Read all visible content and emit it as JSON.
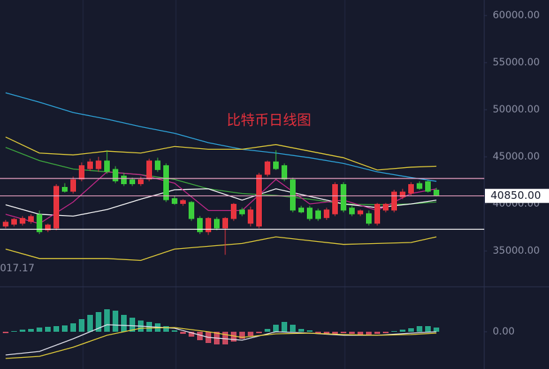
{
  "chart_data": [
    {
      "type": "candlestick",
      "title": "比特币日线图",
      "title_color": "#e0303c",
      "ylim": [
        31200,
        61650
      ],
      "yticks": [
        {
          "value": 35000,
          "label": "35000.00"
        },
        {
          "value": 40000,
          "label": "40000.00"
        },
        {
          "value": 45000,
          "label": "45000.00"
        },
        {
          "value": 50000,
          "label": "50000.00"
        },
        {
          "value": 55000,
          "label": "55000.00"
        },
        {
          "value": 60000,
          "label": "60000.00"
        }
      ],
      "up_color": "#e8353f",
      "down_color": "#3ccf3c",
      "ohlc": [
        [
          37600,
          38300,
          37400,
          38100
        ],
        [
          37800,
          38500,
          37600,
          38400
        ],
        [
          37900,
          38700,
          37700,
          38500
        ],
        [
          38100,
          38900,
          37900,
          38700
        ],
        [
          38900,
          39300,
          36800,
          37000
        ],
        [
          37200,
          37900,
          37000,
          37800
        ],
        [
          37400,
          42100,
          37200,
          41900
        ],
        [
          41800,
          42200,
          41200,
          41300
        ],
        [
          41300,
          42900,
          41100,
          42600
        ],
        [
          42600,
          44400,
          42400,
          44100
        ],
        [
          43700,
          44800,
          43500,
          44500
        ],
        [
          43700,
          45000,
          43400,
          44600
        ],
        [
          44600,
          45700,
          43200,
          43400
        ],
        [
          43700,
          44000,
          42200,
          42400
        ],
        [
          43000,
          43300,
          41900,
          42100
        ],
        [
          42600,
          42800,
          41900,
          42100
        ],
        [
          42100,
          42900,
          41900,
          42600
        ],
        [
          42600,
          44800,
          42400,
          44600
        ],
        [
          44600,
          44900,
          43400,
          43600
        ],
        [
          44100,
          44300,
          40200,
          40400
        ],
        [
          40600,
          40900,
          39900,
          40000
        ],
        [
          40000,
          40500,
          39800,
          40400
        ],
        [
          40200,
          40300,
          38200,
          38400
        ],
        [
          38500,
          38700,
          36800,
          37000
        ],
        [
          37000,
          38600,
          36700,
          38500
        ],
        [
          38400,
          38600,
          37200,
          37400
        ],
        [
          37400,
          38600,
          34600,
          38500
        ],
        [
          38400,
          40100,
          38200,
          40000
        ],
        [
          39400,
          39600,
          38700,
          38900
        ],
        [
          37900,
          39700,
          37600,
          39400
        ],
        [
          37600,
          43300,
          37400,
          43100
        ],
        [
          43100,
          44600,
          42900,
          44500
        ],
        [
          44500,
          45700,
          43600,
          43700
        ],
        [
          44100,
          44300,
          42400,
          42600
        ],
        [
          42600,
          42800,
          39100,
          39300
        ],
        [
          39600,
          39800,
          39000,
          39100
        ],
        [
          39600,
          39800,
          38200,
          38400
        ],
        [
          39300,
          39500,
          38200,
          38400
        ],
        [
          38500,
          39600,
          38300,
          39400
        ],
        [
          38900,
          42300,
          38700,
          42100
        ],
        [
          42100,
          42300,
          39100,
          39300
        ],
        [
          39600,
          39800,
          38700,
          38900
        ],
        [
          38900,
          39400,
          38700,
          39300
        ],
        [
          39000,
          39300,
          37700,
          37900
        ],
        [
          37900,
          40100,
          37700,
          40000
        ],
        [
          39300,
          40100,
          39100,
          40000
        ],
        [
          39300,
          41500,
          39100,
          41300
        ],
        [
          40700,
          41600,
          40500,
          41300
        ],
        [
          41100,
          42300,
          40900,
          42100
        ],
        [
          42200,
          42400,
          41500,
          41600
        ],
        [
          42400,
          42500,
          41200,
          41300
        ],
        [
          41500,
          41700,
          40800,
          40900
        ]
      ],
      "lines": [
        {
          "color": "#2fa8e0",
          "x": [
            0,
            4,
            8,
            12,
            16,
            20,
            24,
            28,
            32,
            36,
            40,
            44,
            48,
            51
          ],
          "values": [
            51800,
            50800,
            49700,
            49000,
            48200,
            47500,
            46500,
            45800,
            45400,
            44900,
            44300,
            43400,
            42800,
            42400
          ]
        },
        {
          "color": "#e8d23a",
          "x": [
            0,
            4,
            8,
            12,
            16,
            20,
            24,
            28,
            32,
            36,
            40,
            44,
            48,
            51
          ],
          "values": [
            47100,
            45400,
            45200,
            45600,
            45400,
            46100,
            45800,
            45800,
            46300,
            45600,
            44900,
            43600,
            43900,
            44000
          ]
        },
        {
          "color": "#e8d23a",
          "x": [
            0,
            4,
            8,
            12,
            16,
            20,
            24,
            28,
            32,
            36,
            40,
            44,
            48,
            51
          ],
          "values": [
            35200,
            34200,
            34200,
            34200,
            34000,
            35200,
            35500,
            35800,
            36500,
            36100,
            35700,
            35800,
            35900,
            36500
          ]
        },
        {
          "color": "#3fae3f",
          "x": [
            0,
            4,
            8,
            12,
            16,
            20,
            24,
            28,
            32,
            36,
            40,
            44,
            48,
            51
          ],
          "values": [
            46000,
            44600,
            43700,
            43400,
            43100,
            42600,
            41600,
            41100,
            40900,
            40500,
            40000,
            39900,
            40000,
            40200
          ]
        },
        {
          "color": "#ffffff",
          "x": [
            0,
            4,
            8,
            12,
            16,
            20,
            24,
            28,
            32,
            36,
            40,
            44,
            48,
            51
          ],
          "values": [
            39900,
            38900,
            38700,
            39400,
            40500,
            41500,
            41600,
            40400,
            41600,
            40800,
            40000,
            39600,
            40000,
            40400
          ]
        },
        {
          "color": "#c8288c",
          "x": [
            0,
            4,
            8,
            12,
            16,
            20,
            24,
            28,
            32,
            36,
            40,
            44,
            48,
            51
          ],
          "values": [
            38900,
            37900,
            40200,
            43400,
            43100,
            42200,
            39300,
            39300,
            42600,
            40000,
            40400,
            39300,
            41100,
            41600
          ]
        }
      ],
      "hlines": [
        {
          "value": 42700,
          "color": "#f2a6c8"
        },
        {
          "value": 40850,
          "color": "#f2a6c8"
        },
        {
          "value": 37300,
          "color": "#ffffff"
        }
      ],
      "price_label": {
        "value": 40850,
        "label": "40850.00"
      },
      "corner_label": "017.17"
    },
    {
      "type": "macd",
      "ylim": [
        -1060,
        1240
      ],
      "yticks": [
        {
          "value": 0,
          "label": "0.00"
        }
      ],
      "up_color": "#2bbf9a",
      "down_color": "#e8556a",
      "histogram": [
        -40,
        20,
        60,
        80,
        120,
        140,
        160,
        180,
        240,
        360,
        480,
        560,
        640,
        600,
        480,
        400,
        320,
        280,
        240,
        160,
        40,
        -60,
        -140,
        -240,
        -320,
        -360,
        -360,
        -280,
        -200,
        -120,
        -40,
        80,
        200,
        280,
        200,
        80,
        40,
        -40,
        -80,
        -60,
        -40,
        -60,
        -80,
        -80,
        -60,
        -40,
        20,
        60,
        100,
        160,
        160,
        120
      ],
      "lines": [
        {
          "color": "#e6e6f0",
          "x": [
            0,
            4,
            8,
            12,
            16,
            20,
            24,
            28,
            32,
            36,
            40,
            44,
            48,
            51
          ],
          "values": [
            -660,
            -560,
            -200,
            200,
            160,
            100,
            -160,
            -240,
            0,
            -40,
            -100,
            -100,
            -40,
            0
          ]
        },
        {
          "color": "#e8d23a",
          "x": [
            0,
            4,
            8,
            12,
            16,
            20,
            24,
            28,
            32,
            36,
            40,
            44,
            48,
            51
          ],
          "values": [
            -760,
            -700,
            -440,
            -100,
            100,
            120,
            0,
            -160,
            -60,
            -40,
            -80,
            -100,
            -80,
            -40
          ]
        }
      ]
    }
  ]
}
